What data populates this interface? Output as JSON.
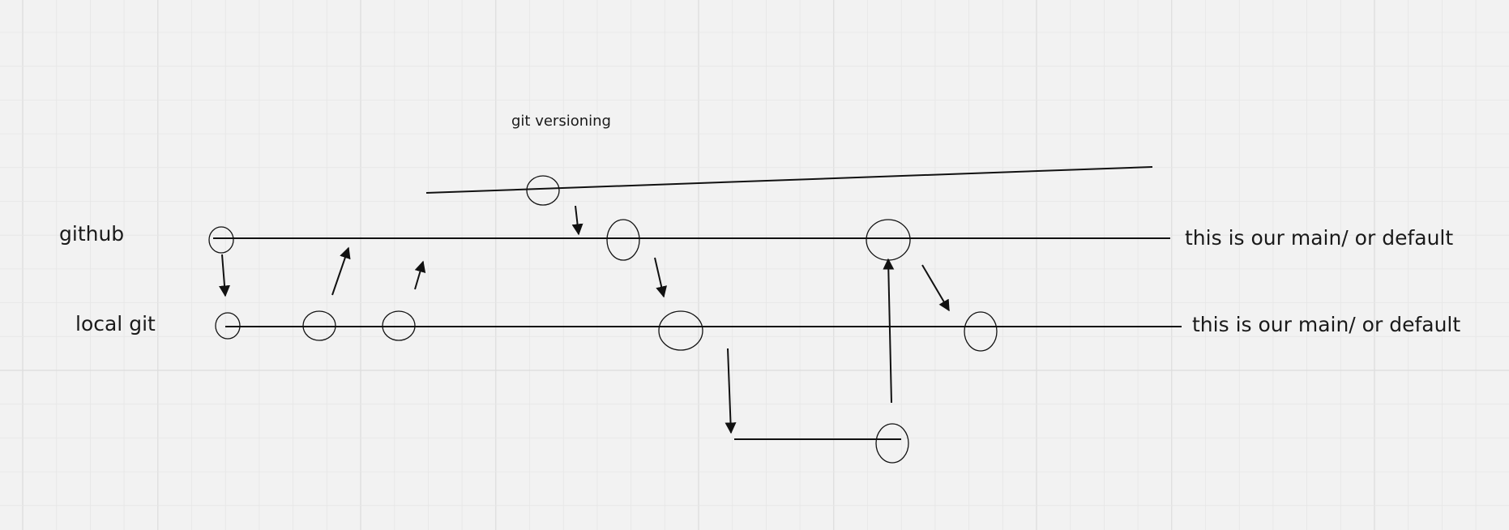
{
  "canvas": {
    "background": "#f2f2f2",
    "grid_color": "#e6e6e6",
    "grid_major_color": "#dcdcdc",
    "ink": "#111111"
  },
  "labels": {
    "title": "git versioning",
    "github": "github",
    "local_git": "local git",
    "main_note_top": "this is our main/ or default",
    "main_note_bottom": "this is our main/ or default"
  }
}
